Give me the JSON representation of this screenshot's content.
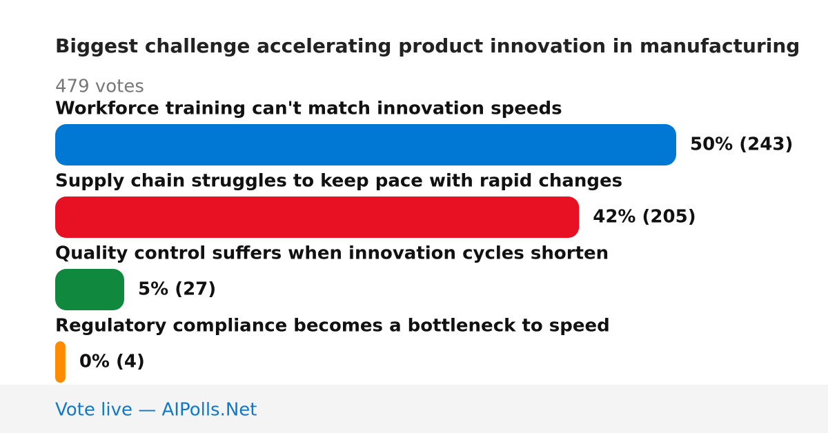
{
  "chart_data": {
    "type": "bar",
    "orientation": "horizontal",
    "title": "Biggest challenge accelerating product innovation in manufacturing",
    "subtitle": "479 votes",
    "categories": [
      "Workforce training can't match innovation speeds",
      "Supply chain struggles to keep pace with rapid changes",
      "Quality control suffers when innovation cycles shorten",
      "Regulatory compliance becomes a bottleneck to speed"
    ],
    "values": [
      243,
      205,
      27,
      4
    ],
    "value_labels": [
      "50% (243)",
      "42% (205)",
      "5% (27)",
      "0% (4)"
    ],
    "colors": [
      "#0078d4",
      "#e81123",
      "#10893e",
      "#ff8c00"
    ],
    "footer": "Vote live — AIPolls.Net"
  }
}
